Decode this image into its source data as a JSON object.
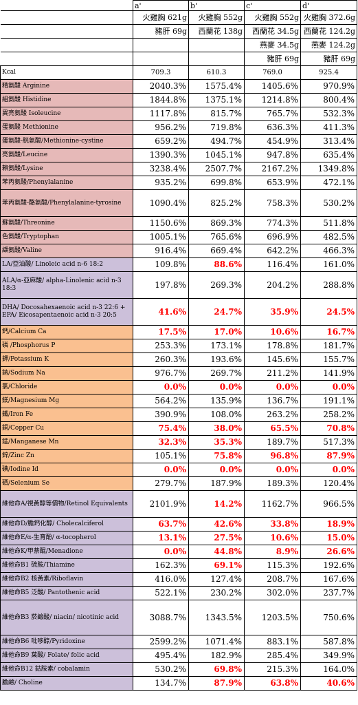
{
  "header": {
    "columns": [
      "a'",
      "b'",
      "c'",
      "d'"
    ],
    "ingredients_row1": [
      "火雞胸 621g",
      "火雞胸 552g",
      "火雞胸 552g",
      "火雞胸 372.6g"
    ],
    "ingredients_row2": [
      "豬肝 69g",
      "西蘭花 138g",
      "西蘭花 34.5g",
      "西蘭花 124.2g"
    ],
    "ingredients_row3": [
      "",
      "",
      "燕麥 34.5g",
      "燕麥 124.2g"
    ],
    "ingredients_row4": [
      "",
      "",
      "豬肝 69g",
      "豬肝 69g"
    ]
  },
  "kcal": {
    "label": "Kcal",
    "values": [
      "709.3",
      "610.3",
      "769.0",
      "925.4"
    ]
  },
  "colors": {
    "amino": "#e6b9b8",
    "fat": "#ccc0da",
    "mineral": "#fac090",
    "vitamin": "#ccc0da",
    "deficit_text": "#ff0000"
  },
  "rows": [
    {
      "group": "amino",
      "h": "s",
      "label": "精氨酸 Arginine",
      "values": [
        "2040.3%",
        "1575.4%",
        "1405.6%",
        "970.9%"
      ],
      "red": [
        false,
        false,
        false,
        false
      ]
    },
    {
      "group": "amino",
      "h": "s",
      "label": "組氨酸 Histidine",
      "values": [
        "1844.8%",
        "1375.1%",
        "1214.8%",
        "800.4%"
      ],
      "red": [
        false,
        false,
        false,
        false
      ]
    },
    {
      "group": "amino",
      "h": "s",
      "label": "異亮氨酸 Isoleucine",
      "values": [
        "1117.8%",
        "815.7%",
        "765.7%",
        "532.3%"
      ],
      "red": [
        false,
        false,
        false,
        false
      ]
    },
    {
      "group": "amino",
      "h": "s",
      "label": "蛋氨酸 Methionine",
      "values": [
        "956.2%",
        "719.8%",
        "636.3%",
        "411.3%"
      ],
      "red": [
        false,
        false,
        false,
        false
      ]
    },
    {
      "group": "amino",
      "h": "s",
      "label": "蛋氨酸-胱氨酸/Methionine-cystine",
      "values": [
        "659.2%",
        "494.7%",
        "454.9%",
        "313.4%"
      ],
      "red": [
        false,
        false,
        false,
        false
      ]
    },
    {
      "group": "amino",
      "h": "s",
      "label": "亮氨酸/Leucine",
      "values": [
        "1390.3%",
        "1045.1%",
        "947.8%",
        "635.4%"
      ],
      "red": [
        false,
        false,
        false,
        false
      ]
    },
    {
      "group": "amino",
      "h": "s",
      "label": "賴氨酸/Lysine",
      "values": [
        "3238.4%",
        "2507.7%",
        "2167.2%",
        "1349.8%"
      ],
      "red": [
        false,
        false,
        false,
        false
      ]
    },
    {
      "group": "amino",
      "h": "s",
      "label": "苯丙氨酸/Phenylalanine",
      "values": [
        "935.2%",
        "699.8%",
        "653.9%",
        "472.1%"
      ],
      "red": [
        false,
        false,
        false,
        false
      ]
    },
    {
      "group": "amino",
      "h": "d",
      "label": "苯丙氨酸-酪氨酸/Phenylalanine-tyrosine",
      "values": [
        "1090.4%",
        "825.2%",
        "758.3%",
        "530.2%"
      ],
      "red": [
        false,
        false,
        false,
        false
      ]
    },
    {
      "group": "amino",
      "h": "s",
      "label": "蘇氨酸/Threonine",
      "values": [
        "1150.6%",
        "869.3%",
        "774.3%",
        "511.8%"
      ],
      "red": [
        false,
        false,
        false,
        false
      ]
    },
    {
      "group": "amino",
      "h": "s",
      "label": "色氨酸/Tryptophan",
      "values": [
        "1005.1%",
        "765.6%",
        "696.9%",
        "482.5%"
      ],
      "red": [
        false,
        false,
        false,
        false
      ]
    },
    {
      "group": "amino",
      "h": "s",
      "label": "纈氨酸/Valine",
      "values": [
        "916.4%",
        "669.4%",
        "642.2%",
        "466.3%"
      ],
      "red": [
        false,
        false,
        false,
        false
      ]
    },
    {
      "group": "fat",
      "h": "s",
      "label": "LA/亞油酸/ Linoleic acid n-6 18:2",
      "values": [
        "109.8%",
        "88.6%",
        "116.4%",
        "161.0%"
      ],
      "red": [
        false,
        true,
        false,
        false
      ]
    },
    {
      "group": "fat",
      "h": "d",
      "label": "ALA/α-亞麻酸/ alpha-Linolenic acid n-3 18:3",
      "values": [
        "197.8%",
        "269.3%",
        "204.2%",
        "288.8%"
      ],
      "red": [
        false,
        false,
        false,
        false
      ]
    },
    {
      "group": "fat",
      "h": "d",
      "label": "DHA/ Docosahexaenoic acid n-3 22:6 + EPA/ Eicosapentaenoic acid n-3 20:5",
      "values": [
        "41.6%",
        "24.7%",
        "35.9%",
        "24.5%"
      ],
      "red": [
        true,
        true,
        true,
        true
      ]
    },
    {
      "group": "mineral",
      "h": "s",
      "label": "鈣/Calcium Ca",
      "values": [
        "17.5%",
        "17.0%",
        "10.6%",
        "16.7%"
      ],
      "red": [
        true,
        true,
        true,
        true
      ]
    },
    {
      "group": "mineral",
      "h": "s",
      "label": "磷 /Phosphorus P",
      "values": [
        "253.3%",
        "173.1%",
        "178.8%",
        "181.7%"
      ],
      "red": [
        false,
        false,
        false,
        false
      ]
    },
    {
      "group": "mineral",
      "h": "s",
      "label": "鉀/Potassium K",
      "values": [
        "260.3%",
        "193.6%",
        "145.6%",
        "155.7%"
      ],
      "red": [
        false,
        false,
        false,
        false
      ]
    },
    {
      "group": "mineral",
      "h": "s",
      "label": "鈉/Sodium Na",
      "values": [
        "976.7%",
        "269.7%",
        "211.2%",
        "141.9%"
      ],
      "red": [
        false,
        false,
        false,
        false
      ]
    },
    {
      "group": "mineral",
      "h": "s",
      "label": "氯/Chloride",
      "values": [
        "0.0%",
        "0.0%",
        "0.0%",
        "0.0%"
      ],
      "red": [
        true,
        true,
        true,
        true
      ]
    },
    {
      "group": "mineral",
      "h": "s",
      "label": "鎂/Magnesium Mg",
      "values": [
        "564.2%",
        "135.9%",
        "136.7%",
        "191.1%"
      ],
      "red": [
        false,
        false,
        false,
        false
      ]
    },
    {
      "group": "mineral",
      "h": "s",
      "label": "鐵/Iron Fe",
      "values": [
        "390.9%",
        "108.0%",
        "263.2%",
        "258.2%"
      ],
      "red": [
        false,
        false,
        false,
        false
      ]
    },
    {
      "group": "mineral",
      "h": "s",
      "label": "銅/Copper Cu",
      "values": [
        "75.4%",
        "38.0%",
        "65.5%",
        "70.8%"
      ],
      "red": [
        true,
        true,
        true,
        true
      ]
    },
    {
      "group": "mineral",
      "h": "s",
      "label": "錳/Manganese Mn",
      "values": [
        "32.3%",
        "35.3%",
        "189.7%",
        "517.3%"
      ],
      "red": [
        true,
        true,
        false,
        false
      ]
    },
    {
      "group": "mineral",
      "h": "s",
      "label": "鋅/Zinc Zn",
      "values": [
        "105.1%",
        "75.8%",
        "96.8%",
        "87.9%"
      ],
      "red": [
        false,
        true,
        true,
        true
      ]
    },
    {
      "group": "mineral",
      "h": "s",
      "label": "碘/Iodine Id",
      "values": [
        "0.0%",
        "0.0%",
        "0.0%",
        "0.0%"
      ],
      "red": [
        true,
        true,
        true,
        true
      ]
    },
    {
      "group": "mineral",
      "h": "s",
      "label": "硒/Selenium Se",
      "values": [
        "279.7%",
        "187.9%",
        "189.3%",
        "120.4%"
      ],
      "red": [
        false,
        false,
        false,
        false
      ]
    },
    {
      "group": "vitamin",
      "h": "d",
      "label": "維他命A/視黃醇等價物/Retinol Equivalents",
      "values": [
        "2101.9%",
        "14.2%",
        "1162.7%",
        "966.5%"
      ],
      "red": [
        false,
        true,
        false,
        false
      ]
    },
    {
      "group": "vitamin",
      "h": "s",
      "label": "維他命D/膽鈣化醇/ Cholecalciferol",
      "values": [
        "63.7%",
        "42.6%",
        "33.8%",
        "18.9%"
      ],
      "red": [
        true,
        true,
        true,
        true
      ]
    },
    {
      "group": "vitamin",
      "h": "s",
      "label": "維他命E/α-生育酚/ α-tocopherol",
      "values": [
        "13.1%",
        "27.5%",
        "10.6%",
        "15.0%"
      ],
      "red": [
        true,
        true,
        true,
        true
      ]
    },
    {
      "group": "vitamin",
      "h": "s",
      "label": "維他命K/甲萘醌/Menadione",
      "values": [
        "0.0%",
        "44.8%",
        "8.9%",
        "26.6%"
      ],
      "red": [
        true,
        true,
        true,
        true
      ]
    },
    {
      "group": "vitamin",
      "h": "s",
      "label": "維他命B1 硫胺/Thiamine",
      "values": [
        "162.3%",
        "69.1%",
        "115.3%",
        "192.6%"
      ],
      "red": [
        false,
        true,
        false,
        false
      ]
    },
    {
      "group": "vitamin",
      "h": "s",
      "label": "維他命B2 核黃素/Riboflavin",
      "values": [
        "416.0%",
        "127.4%",
        "208.7%",
        "167.6%"
      ],
      "red": [
        false,
        false,
        false,
        false
      ]
    },
    {
      "group": "vitamin",
      "h": "s",
      "label": "維他命B5 泛酸/ Pantothenic acid",
      "values": [
        "522.1%",
        "230.2%",
        "302.0%",
        "237.7%"
      ],
      "red": [
        false,
        false,
        false,
        false
      ]
    },
    {
      "group": "vitamin",
      "h": "t",
      "label": "維他命B3 菸鹼酸/ niacin/ nicotinic acid",
      "values": [
        "3088.7%",
        "1343.5%",
        "1203.5%",
        "750.6%"
      ],
      "red": [
        false,
        false,
        false,
        false
      ]
    },
    {
      "group": "vitamin",
      "h": "s",
      "label": "維他命B6 吡哆醇/Pyridoxine",
      "values": [
        "2599.2%",
        "1071.4%",
        "883.1%",
        "587.8%"
      ],
      "red": [
        false,
        false,
        false,
        false
      ]
    },
    {
      "group": "vitamin",
      "h": "s",
      "label": "維他命B9 葉酸/ Folate/ folic acid",
      "values": [
        "495.4%",
        "182.9%",
        "285.4%",
        "349.9%"
      ],
      "red": [
        false,
        false,
        false,
        false
      ]
    },
    {
      "group": "vitamin",
      "h": "s",
      "label": "維他命B12 鈷胺素/ cobalamin",
      "values": [
        "530.2%",
        "69.8%",
        "215.3%",
        "164.0%"
      ],
      "red": [
        false,
        true,
        false,
        false
      ]
    },
    {
      "group": "vitamin",
      "h": "s",
      "label": "膽鹼/ Choline",
      "values": [
        "134.7%",
        "87.9%",
        "63.8%",
        "40.6%"
      ],
      "red": [
        false,
        true,
        true,
        true
      ]
    }
  ]
}
